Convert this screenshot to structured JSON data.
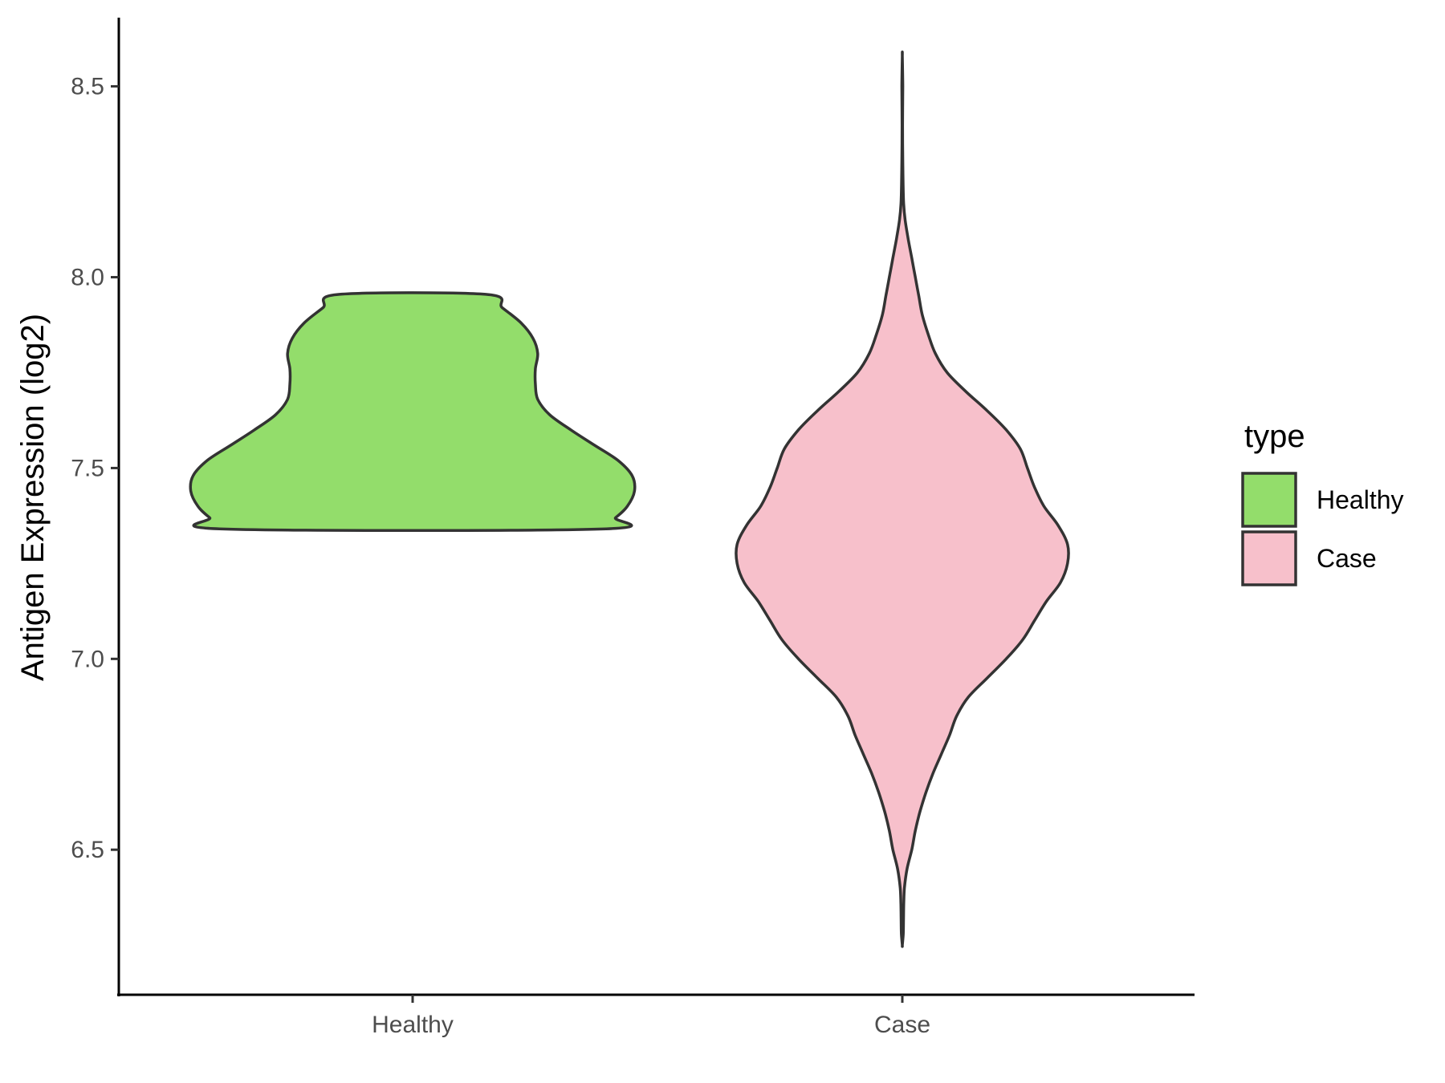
{
  "chart_data": {
    "type": "violin",
    "ylabel": "Antigen Expression (log2)",
    "xlabel": "",
    "categories": [
      "Healthy",
      "Case"
    ],
    "ylim": [
      6.12,
      8.68
    ],
    "yticks": [
      6.5,
      7.0,
      7.5,
      8.0,
      8.5
    ],
    "ytick_labels": [
      "6.5",
      "7.0",
      "7.5",
      "8.0",
      "8.5"
    ],
    "grid": false,
    "legend": {
      "title": "type",
      "placement": "right",
      "entries": [
        {
          "label": "Healthy",
          "color": "#93dd6b"
        },
        {
          "label": "Case",
          "color": "#f7c0cb"
        }
      ]
    },
    "series": [
      {
        "category": "Healthy",
        "color": "#93dd6b",
        "density_profile": [
          [
            7.34,
            0.79
          ],
          [
            7.37,
            0.86
          ],
          [
            7.4,
            0.91
          ],
          [
            7.44,
            0.94
          ],
          [
            7.48,
            0.93
          ],
          [
            7.52,
            0.87
          ],
          [
            7.56,
            0.77
          ],
          [
            7.6,
            0.67
          ],
          [
            7.64,
            0.58
          ],
          [
            7.68,
            0.53
          ],
          [
            7.72,
            0.52
          ],
          [
            7.76,
            0.52
          ],
          [
            7.8,
            0.53
          ],
          [
            7.84,
            0.51
          ],
          [
            7.88,
            0.46
          ],
          [
            7.92,
            0.38
          ],
          [
            7.955,
            0.31
          ]
        ]
      },
      {
        "category": "Case",
        "color": "#f7c0cb",
        "density_profile": [
          [
            6.25,
            0.0
          ],
          [
            6.28,
            0.004
          ],
          [
            6.32,
            0.005
          ],
          [
            6.36,
            0.006
          ],
          [
            6.4,
            0.009
          ],
          [
            6.45,
            0.02
          ],
          [
            6.5,
            0.04
          ],
          [
            6.55,
            0.055
          ],
          [
            6.6,
            0.075
          ],
          [
            6.65,
            0.1
          ],
          [
            6.7,
            0.13
          ],
          [
            6.75,
            0.165
          ],
          [
            6.8,
            0.2
          ],
          [
            6.85,
            0.23
          ],
          [
            6.9,
            0.28
          ],
          [
            6.95,
            0.36
          ],
          [
            7.0,
            0.44
          ],
          [
            7.05,
            0.51
          ],
          [
            7.1,
            0.56
          ],
          [
            7.15,
            0.61
          ],
          [
            7.2,
            0.67
          ],
          [
            7.25,
            0.7
          ],
          [
            7.3,
            0.7
          ],
          [
            7.35,
            0.66
          ],
          [
            7.4,
            0.6
          ],
          [
            7.45,
            0.56
          ],
          [
            7.5,
            0.53
          ],
          [
            7.55,
            0.5
          ],
          [
            7.6,
            0.44
          ],
          [
            7.65,
            0.36
          ],
          [
            7.7,
            0.27
          ],
          [
            7.75,
            0.19
          ],
          [
            7.8,
            0.14
          ],
          [
            7.85,
            0.11
          ],
          [
            7.9,
            0.085
          ],
          [
            7.95,
            0.07
          ],
          [
            8.0,
            0.055
          ],
          [
            8.05,
            0.04
          ],
          [
            8.1,
            0.025
          ],
          [
            8.15,
            0.012
          ],
          [
            8.2,
            0.005
          ],
          [
            8.3,
            0.002
          ],
          [
            8.4,
            0.001
          ],
          [
            8.5,
            0.002
          ],
          [
            8.58,
            0.0
          ]
        ]
      }
    ]
  }
}
